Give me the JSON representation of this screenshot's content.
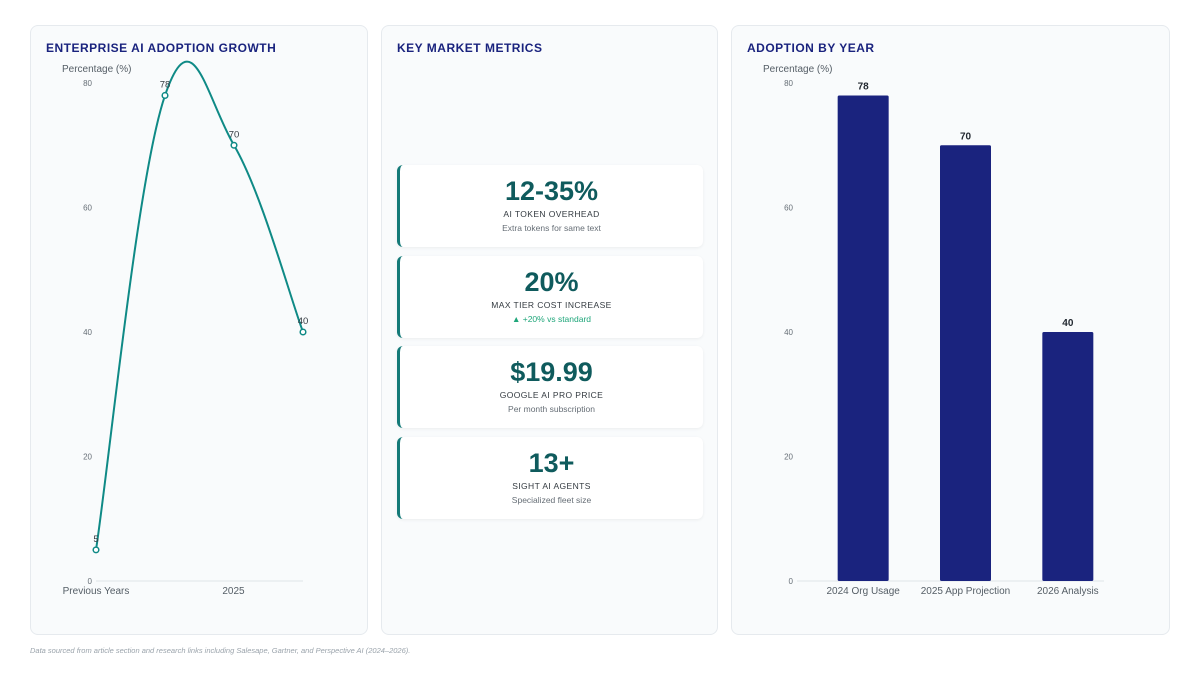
{
  "panels": {
    "growth": {
      "title": "ENTERPRISE AI ADOPTION GROWTH"
    },
    "metrics": {
      "title": "KEY MARKET METRICS",
      "cards": [
        {
          "value": "12-35%",
          "label": "AI TOKEN OVERHEAD",
          "sub": "Extra tokens for same text",
          "sub_trend": ""
        },
        {
          "value": "20%",
          "label": "MAX TIER COST INCREASE",
          "sub": "▲ +20% vs standard",
          "sub_trend": "up"
        },
        {
          "value": "$19.99",
          "label": "GOOGLE AI PRO PRICE",
          "sub": "Per month subscription",
          "sub_trend": ""
        },
        {
          "value": "13+",
          "label": "SIGHT AI AGENTS",
          "sub": "Specialized fleet size",
          "sub_trend": ""
        }
      ]
    },
    "yearly": {
      "title": "ADOPTION BY YEAR"
    }
  },
  "colors": {
    "line": "#0f8a86",
    "bar": "#1a237e",
    "accent": "#147a78"
  },
  "chart_data": [
    {
      "type": "line",
      "title": "ENTERPRISE AI ADOPTION GROWTH",
      "ylabel": "Percentage (%)",
      "xlabel": "",
      "ylim": [
        0,
        80
      ],
      "yticks": [
        0,
        20,
        40,
        60,
        80
      ],
      "x_tick_labels": [
        "Previous Years",
        "2025"
      ],
      "points": [
        {
          "label": "5",
          "value": 5
        },
        {
          "label": "78",
          "value": 78
        },
        {
          "label": "70",
          "value": 70
        },
        {
          "label": "40",
          "value": 40
        }
      ],
      "grid": false,
      "smooth": true
    },
    {
      "type": "bar",
      "title": "ADOPTION BY YEAR",
      "ylabel": "Percentage (%)",
      "xlabel": "",
      "ylim": [
        0,
        80
      ],
      "yticks": [
        0,
        20,
        40,
        60,
        80
      ],
      "categories": [
        "2024 Org Usage",
        "2025 App Projection",
        "2026 Analysis"
      ],
      "values": [
        78,
        70,
        40
      ],
      "grid": false
    }
  ],
  "footnote": "Data sourced from article section and research links including Salesape, Gartner, and Perspective AI (2024–2026)."
}
